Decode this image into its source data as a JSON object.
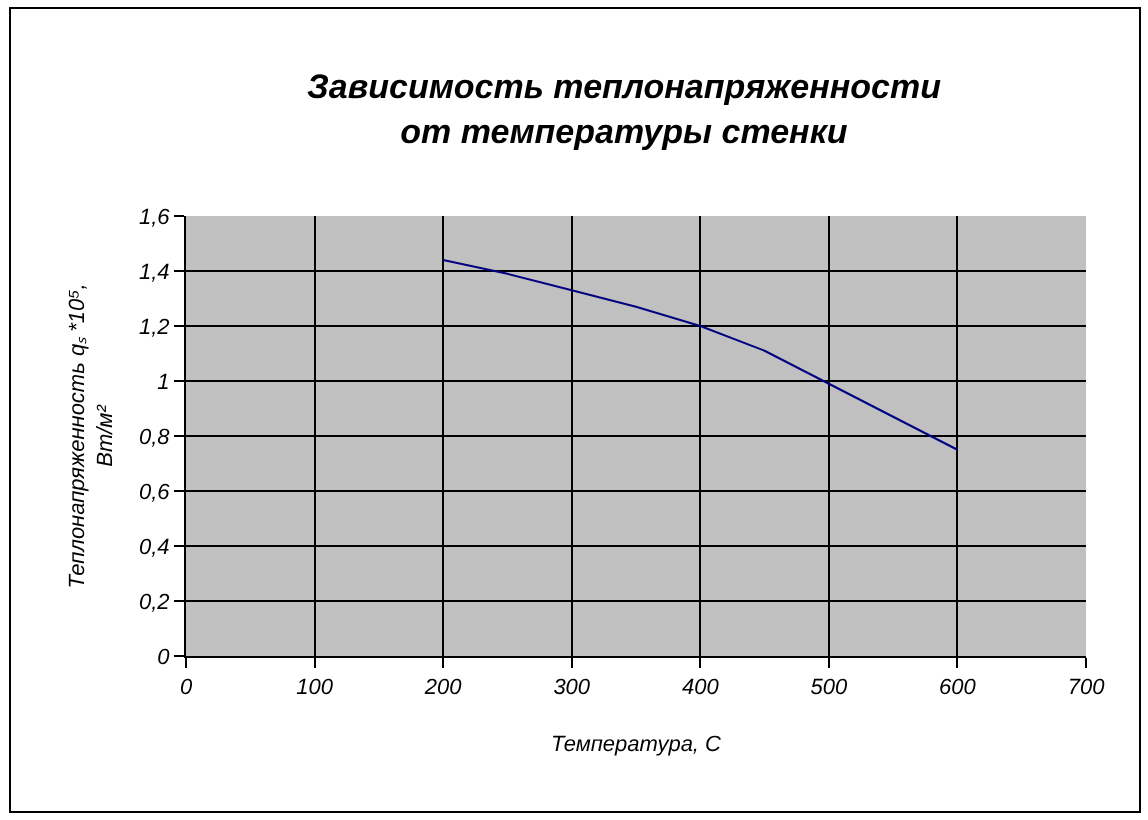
{
  "chart_data": {
    "type": "line",
    "title": "Зависимость теплонапряженности\nот температуры стенки",
    "xlabel": "Температура, С",
    "ylabel": "Теплонапряженность qₛ *10⁵,\nВт/м²",
    "x": [
      200,
      250,
      300,
      350,
      400,
      450,
      500,
      550,
      600
    ],
    "series": [
      {
        "color": "#000080",
        "values": [
          1.44,
          1.39,
          1.33,
          1.27,
          1.2,
          1.11,
          0.99,
          0.87,
          0.75
        ]
      }
    ],
    "xlim": [
      0,
      700
    ],
    "xticks": [
      0,
      100,
      200,
      300,
      400,
      500,
      600,
      700
    ],
    "ylim": [
      0,
      1.6
    ],
    "yticks": [
      0,
      {
        "value": 0.2,
        "label": "0,2"
      },
      {
        "value": 0.4,
        "label": "0,4"
      },
      {
        "value": 0.6,
        "label": "0,6"
      },
      {
        "value": 0.8,
        "label": "0,8"
      },
      1,
      {
        "value": 1.2,
        "label": "1,2"
      },
      {
        "value": 1.4,
        "label": "1,4"
      },
      {
        "value": 1.6,
        "label": "1,6"
      }
    ],
    "grid": true
  }
}
